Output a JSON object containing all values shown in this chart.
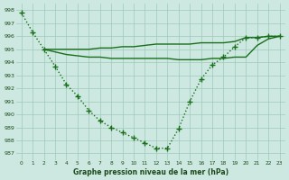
{
  "curve": {
    "x": [
      0,
      1,
      2,
      3,
      4,
      5,
      6,
      7,
      8,
      9,
      10,
      11,
      12,
      13,
      14,
      15,
      16,
      17,
      18,
      19,
      20,
      21,
      22,
      23
    ],
    "y": [
      997.8,
      996.3,
      995.0,
      993.7,
      992.3,
      991.4,
      990.3,
      989.5,
      989.0,
      988.6,
      988.2,
      987.8,
      987.4,
      987.4,
      988.9,
      991.0,
      992.7,
      993.8,
      994.4,
      995.2,
      995.9,
      995.9,
      996.0,
      996.0
    ],
    "color": "#1a6e1a",
    "linewidth": 1.0,
    "marker": "+"
  },
  "upper_line": {
    "x": [
      2,
      3,
      4,
      5,
      6,
      7,
      8,
      9,
      10,
      11,
      12,
      13,
      14,
      15,
      16,
      17,
      18,
      19,
      20,
      21,
      22,
      23
    ],
    "y": [
      995.0,
      995.0,
      995.0,
      995.0,
      995.0,
      995.1,
      995.1,
      995.2,
      995.2,
      995.3,
      995.4,
      995.4,
      995.4,
      995.4,
      995.5,
      995.5,
      995.5,
      995.6,
      995.9,
      995.9,
      996.0,
      996.0
    ],
    "color": "#1a6e1a",
    "linewidth": 1.0
  },
  "lower_line": {
    "x": [
      2,
      3,
      4,
      5,
      6,
      7,
      8,
      9,
      10,
      11,
      12,
      13,
      14,
      15,
      16,
      17,
      18,
      19,
      20,
      21,
      22,
      23
    ],
    "y": [
      995.0,
      994.8,
      994.6,
      994.5,
      994.4,
      994.4,
      994.3,
      994.3,
      994.3,
      994.3,
      994.3,
      994.3,
      994.2,
      994.2,
      994.2,
      994.3,
      994.3,
      994.4,
      994.4,
      995.3,
      995.8,
      996.0
    ],
    "color": "#1a6e1a",
    "linewidth": 1.0
  },
  "ylim": [
    986.5,
    998.5
  ],
  "xlim": [
    -0.5,
    23.5
  ],
  "yticks": [
    987,
    988,
    989,
    990,
    991,
    992,
    993,
    994,
    995,
    996,
    997,
    998
  ],
  "xticks": [
    0,
    1,
    2,
    3,
    4,
    5,
    6,
    7,
    8,
    9,
    10,
    11,
    12,
    13,
    14,
    15,
    16,
    17,
    18,
    19,
    20,
    21,
    22,
    23
  ],
  "xlabel": "Graphe pression niveau de la mer (hPa)",
  "bg_color": "#cce8e0",
  "grid_color": "#9dc9b8",
  "line_color": "#1a6e1a",
  "tick_label_color": "#1a4a1a"
}
